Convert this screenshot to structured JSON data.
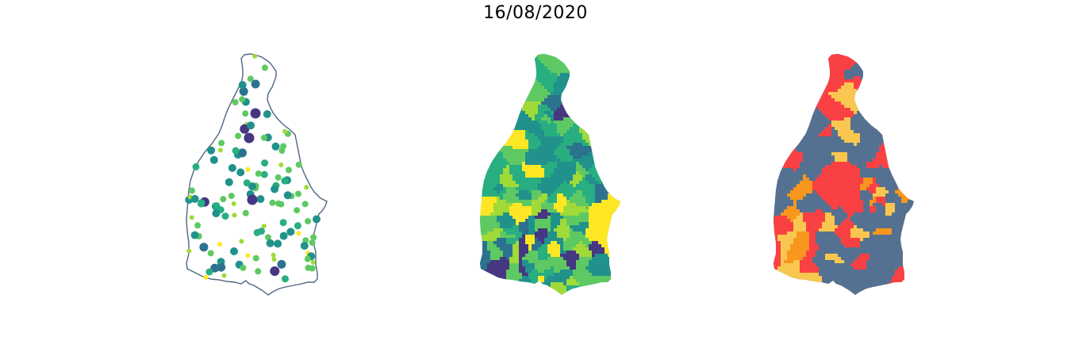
{
  "figure": {
    "title": "16/08/2020"
  },
  "colors": {
    "outline": "#4f6684",
    "viridis": [
      "#453781",
      "#3b528b",
      "#2c728e",
      "#21918c",
      "#28ae80",
      "#5ec962",
      "#a0da39",
      "#fde725"
    ],
    "categories": [
      "#557191",
      "#f94144",
      "#f9c74f",
      "#f8961e"
    ]
  },
  "panels": [
    {
      "name": "bubble-map",
      "type": "proportional-symbols"
    },
    {
      "name": "choropleth-map",
      "type": "choropleth-viridis"
    },
    {
      "name": "category-map",
      "type": "categorical-choropleth"
    }
  ]
}
